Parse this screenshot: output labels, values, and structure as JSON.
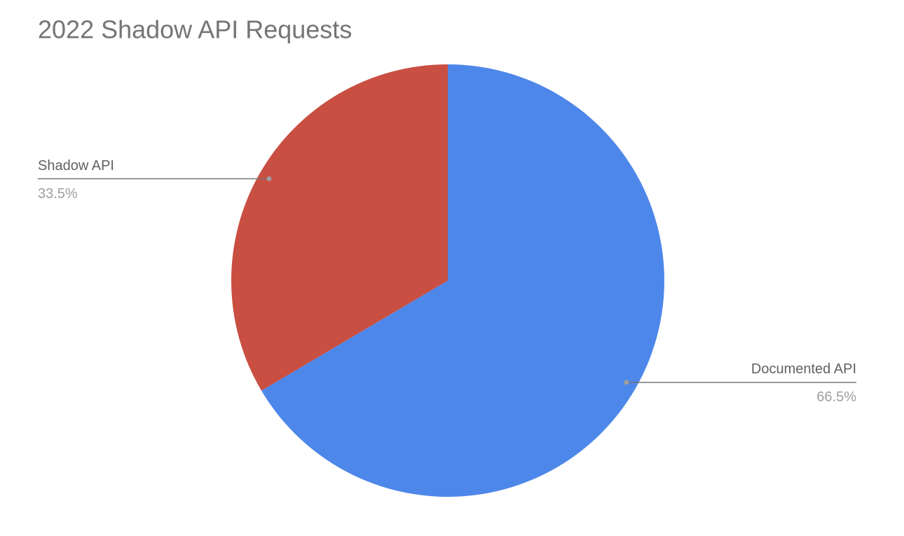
{
  "chart_data": {
    "type": "pie",
    "title": "2022 Shadow API Requests",
    "categories": [
      "Documented API",
      "Shadow API"
    ],
    "values": [
      66.5,
      33.5
    ],
    "value_labels": [
      "66.5%",
      "33.5%"
    ],
    "colors": [
      "#4e87ea",
      "#c94f42"
    ]
  }
}
